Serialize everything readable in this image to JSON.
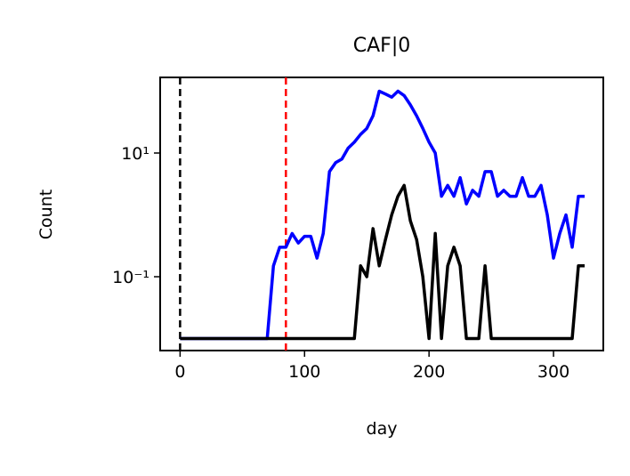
{
  "chart_data": {
    "type": "line",
    "title": "CAF|0",
    "xlabel": "day",
    "ylabel": "Count",
    "x": [
      0,
      5,
      10,
      15,
      20,
      25,
      30,
      35,
      40,
      45,
      50,
      55,
      60,
      65,
      70,
      75,
      80,
      85,
      90,
      95,
      100,
      105,
      110,
      115,
      120,
      125,
      130,
      135,
      140,
      145,
      150,
      155,
      160,
      165,
      170,
      175,
      180,
      185,
      190,
      195,
      200,
      205,
      210,
      215,
      220,
      225,
      230,
      235,
      240,
      245,
      250,
      255,
      260,
      265,
      270,
      275,
      280,
      285,
      290,
      295,
      300,
      305,
      310,
      315,
      320,
      325
    ],
    "series": [
      {
        "color": "#0000ff",
        "values": [
          0.01,
          0.01,
          0.01,
          0.01,
          0.01,
          0.01,
          0.01,
          0.01,
          0.01,
          0.01,
          0.01,
          0.01,
          0.01,
          0.01,
          0.01,
          0.15,
          0.3,
          0.3,
          0.5,
          0.35,
          0.45,
          0.45,
          0.2,
          0.5,
          5,
          7,
          8,
          12,
          15,
          20,
          25,
          40,
          100,
          90,
          80,
          100,
          85,
          60,
          40,
          25,
          15,
          10,
          2,
          3,
          2,
          4,
          1.5,
          2.5,
          2,
          5,
          5,
          2,
          2.5,
          2,
          2,
          4,
          2,
          2,
          3,
          1,
          0.2,
          0.5,
          1,
          0.3,
          2,
          2
        ]
      },
      {
        "color": "#000000",
        "values": [
          0.01,
          0.01,
          0.01,
          0.01,
          0.01,
          0.01,
          0.01,
          0.01,
          0.01,
          0.01,
          0.01,
          0.01,
          0.01,
          0.01,
          0.01,
          0.01,
          0.01,
          0.01,
          0.01,
          0.01,
          0.01,
          0.01,
          0.01,
          0.01,
          0.01,
          0.01,
          0.01,
          0.01,
          0.01,
          0.15,
          0.1,
          0.6,
          0.15,
          0.4,
          1,
          2,
          3,
          0.8,
          0.4,
          0.1,
          0.01,
          0.5,
          0.01,
          0.15,
          0.3,
          0.15,
          0.01,
          0.01,
          0.01,
          0.15,
          0.01,
          0.01,
          0.01,
          0.01,
          0.01,
          0.01,
          0.01,
          0.01,
          0.01,
          0.01,
          0.01,
          0.01,
          0.01,
          0.01,
          0.15,
          0.15
        ]
      }
    ],
    "vlines": [
      {
        "value": 0,
        "color": "#000000"
      },
      {
        "value": 85,
        "color": "#ff0000"
      }
    ],
    "xlim": [
      -16,
      340
    ],
    "xticks": [
      0,
      100,
      200,
      300
    ],
    "ylim": [
      0.0064,
      167
    ],
    "ylog": true,
    "yticks": [
      {
        "value": 0.1,
        "label": "10⁻¹"
      },
      {
        "value": 10,
        "label": "10¹"
      }
    ]
  }
}
